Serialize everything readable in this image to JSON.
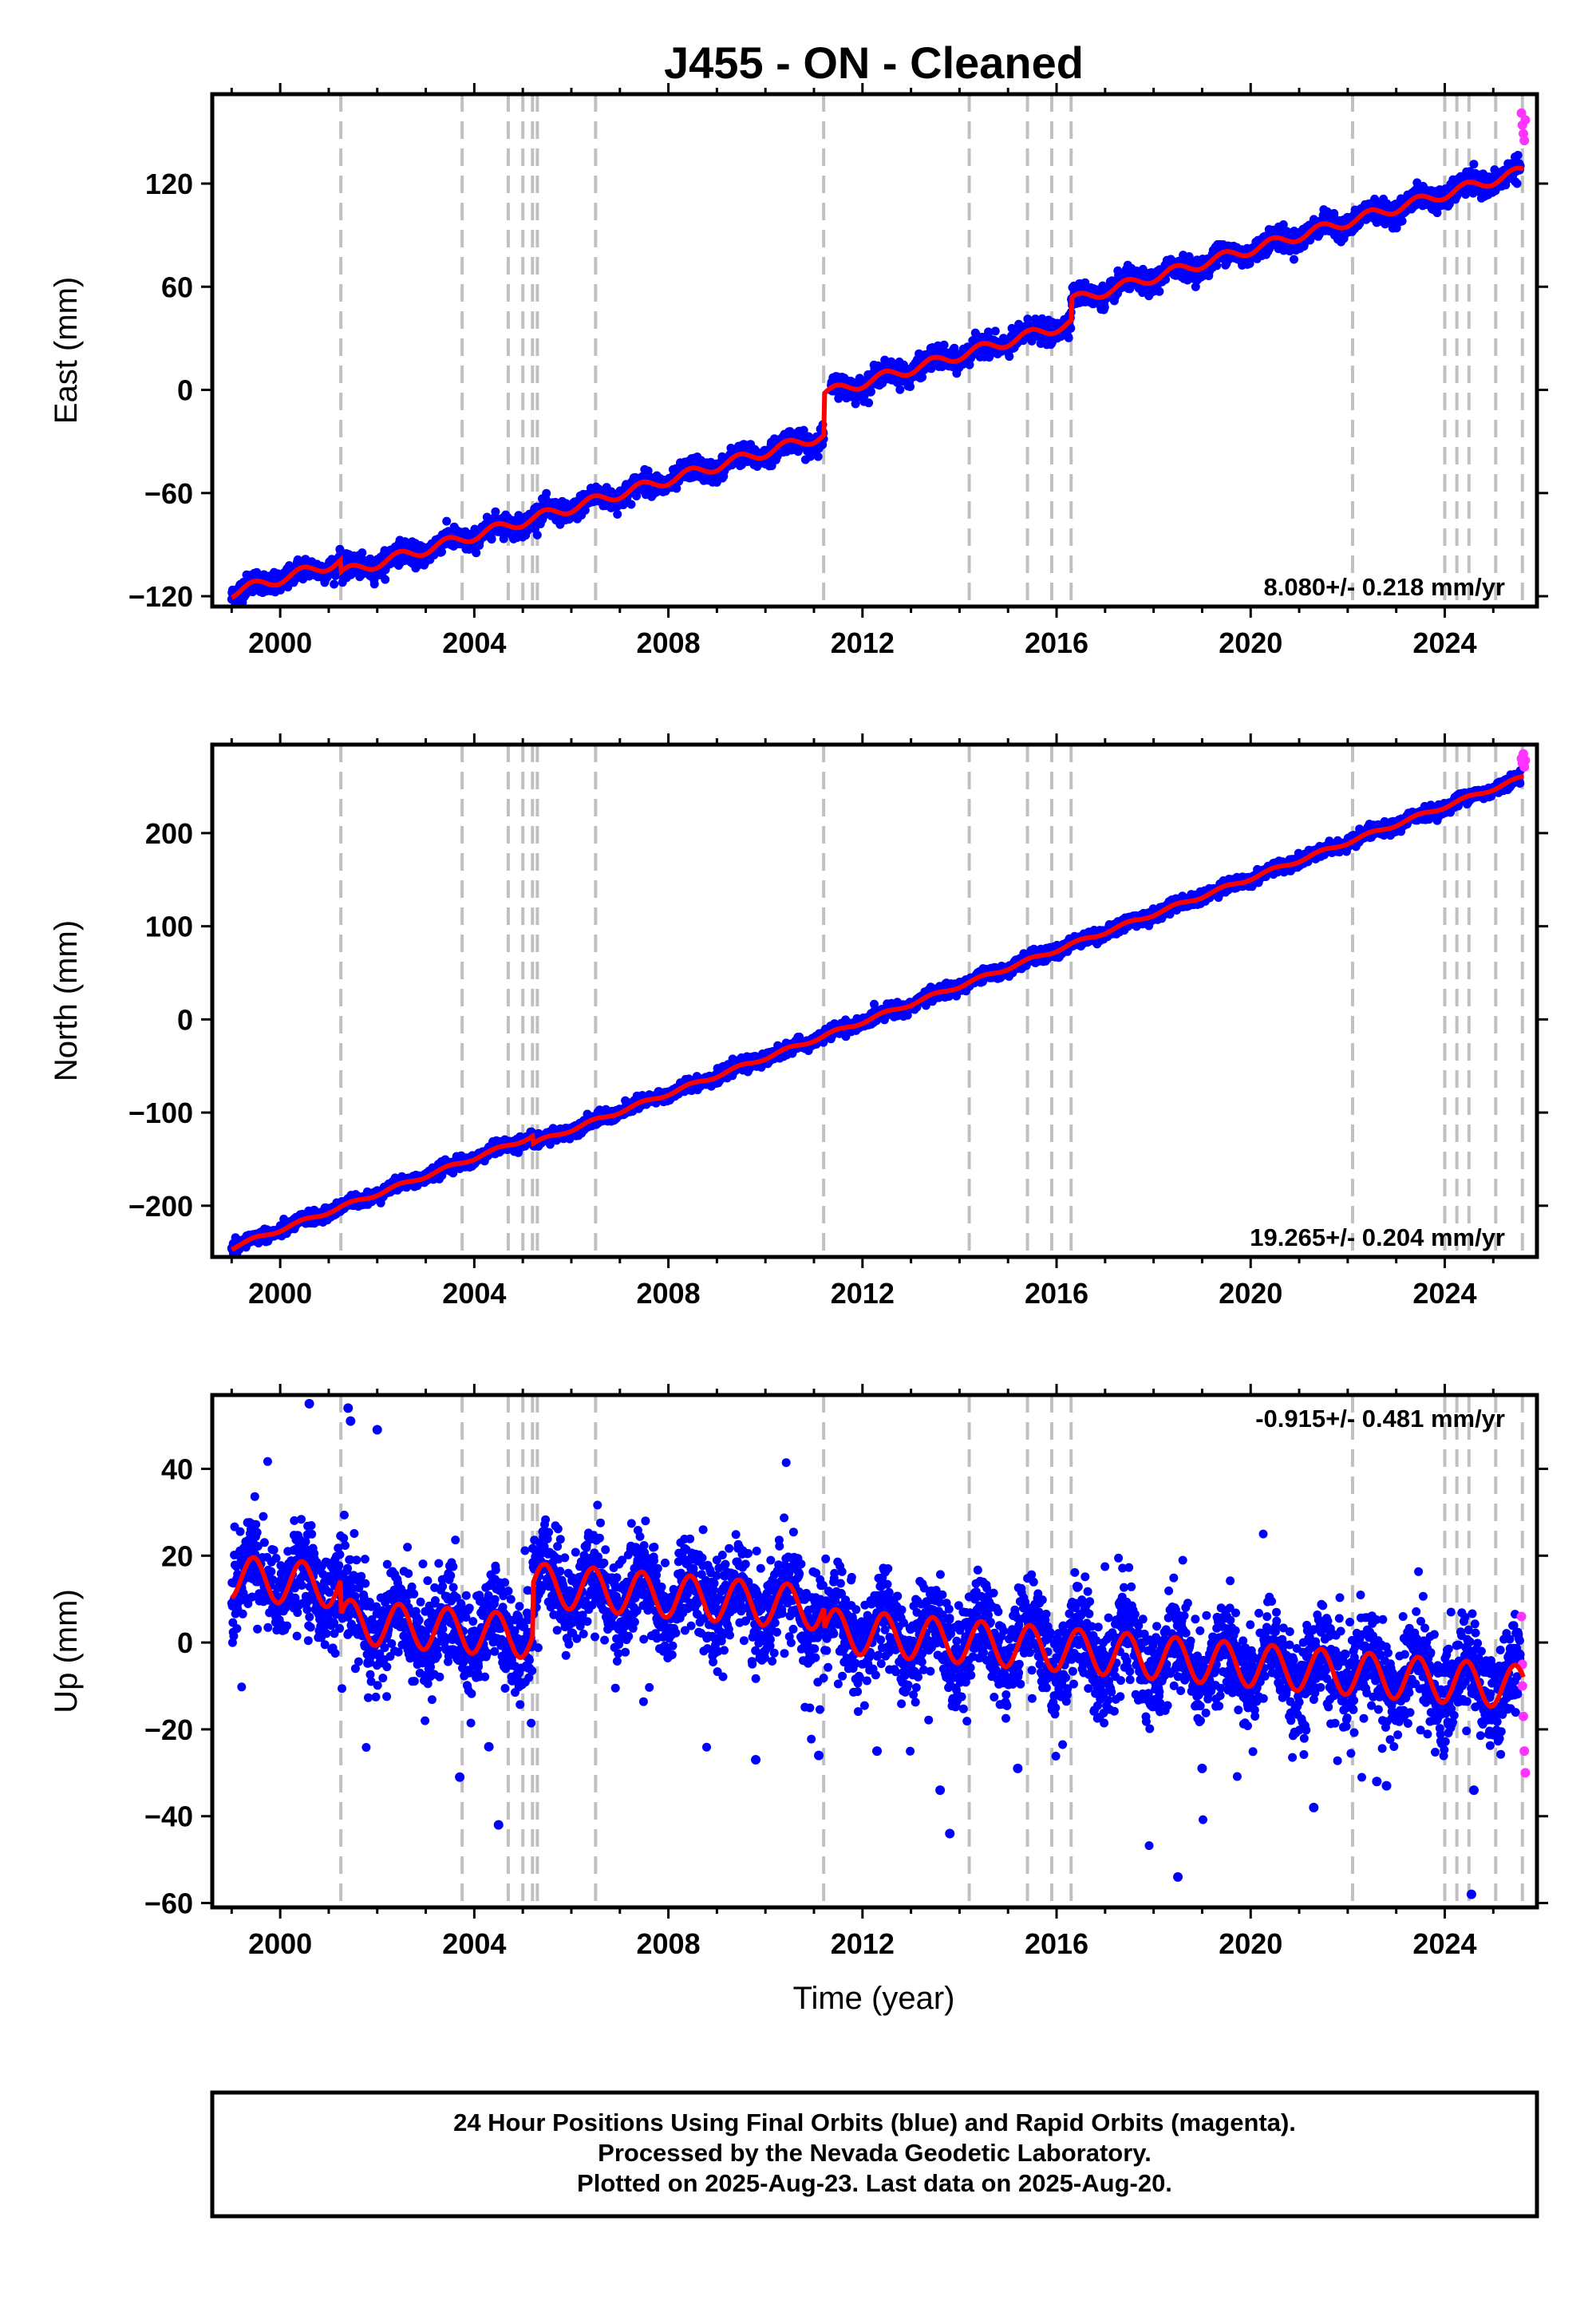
{
  "title": "J455  - ON - Cleaned",
  "x_axis_label": "Time (year)",
  "footer": {
    "line1": "24 Hour Positions Using Final Orbits (blue) and Rapid Orbits (magenta).",
    "line2": "Processed by the Nevada Geodetic Laboratory.",
    "line3": "Plotted on 2025-Aug-23. Last data on 2025-Aug-20."
  },
  "colors": {
    "final_orbits": "#0000ff",
    "rapid_orbits": "#ff33ff",
    "model": "#ff0000",
    "event_lines": "#c0c0c0"
  },
  "chart_data": [
    {
      "type": "scatter",
      "component": "East",
      "ylabel": "East (mm)",
      "xlim": [
        1998.6,
        2025.9
      ],
      "ylim": [
        -126,
        172
      ],
      "yticks": [
        -120,
        -60,
        0,
        60,
        120
      ],
      "xticks": [
        2000,
        2004,
        2008,
        2012,
        2016,
        2020,
        2024
      ],
      "rate_label": "8.080+/- 0.218 mm/yr",
      "rate_position": "bottom-right",
      "grid": false,
      "event_lines": [
        2001.25,
        2003.75,
        2004.7,
        2005.0,
        2005.2,
        2005.3,
        2006.5,
        2011.2,
        2014.2,
        2015.4,
        2015.9,
        2016.3,
        2022.1,
        2024.0,
        2024.25,
        2024.5,
        2025.05,
        2025.6
      ],
      "model": {
        "rate": 8.08,
        "ref_year": 1999.0,
        "ref_value": -118,
        "offsets": [
          {
            "year": 2001.25,
            "value": -7
          },
          {
            "year": 2011.2,
            "value": 24
          },
          {
            "year": 2016.3,
            "value": 13
          }
        ],
        "seasonal_amplitude": 3
      },
      "rapid_points": [
        [
          2025.58,
          161
        ],
        [
          2025.6,
          154
        ],
        [
          2025.62,
          149
        ],
        [
          2025.64,
          145
        ],
        [
          2025.66,
          157
        ]
      ]
    },
    {
      "type": "scatter",
      "component": "North",
      "ylabel": "North (mm)",
      "xlim": [
        1998.6,
        2025.9
      ],
      "ylim": [
        -255,
        295
      ],
      "yticks": [
        -200,
        -100,
        0,
        100,
        200
      ],
      "xticks": [
        2000,
        2004,
        2008,
        2012,
        2016,
        2020,
        2024
      ],
      "rate_label": "19.265+/- 0.204 mm/yr",
      "rate_position": "bottom-right",
      "grid": false,
      "event_lines": [
        2001.25,
        2003.75,
        2004.7,
        2005.0,
        2005.2,
        2005.3,
        2006.5,
        2011.2,
        2014.2,
        2015.4,
        2015.9,
        2016.3,
        2022.1,
        2024.0,
        2024.25,
        2024.5,
        2025.05,
        2025.6
      ],
      "model": {
        "rate": 19.265,
        "ref_year": 1999.0,
        "ref_value": -245,
        "offsets": [
          {
            "year": 2005.2,
            "value": -8
          }
        ],
        "seasonal_amplitude": 2
      },
      "rapid_points": [
        [
          2025.58,
          280
        ],
        [
          2025.6,
          275
        ],
        [
          2025.62,
          285
        ],
        [
          2025.64,
          271
        ],
        [
          2025.66,
          278
        ]
      ]
    },
    {
      "type": "scatter",
      "component": "Up",
      "ylabel": "Up (mm)",
      "xlim": [
        1998.6,
        2025.9
      ],
      "ylim": [
        -61,
        57
      ],
      "yticks": [
        -60,
        -40,
        -20,
        0,
        20,
        40
      ],
      "xticks": [
        2000,
        2004,
        2008,
        2012,
        2016,
        2020,
        2024
      ],
      "rate_label": "-0.915+/- 0.481 mm/yr",
      "rate_position": "top-right",
      "grid": false,
      "event_lines": [
        2001.25,
        2003.75,
        2004.7,
        2005.0,
        2005.2,
        2005.3,
        2006.5,
        2011.2,
        2014.2,
        2015.4,
        2015.9,
        2016.3,
        2022.1,
        2024.0,
        2024.25,
        2024.5,
        2025.05,
        2025.6
      ],
      "model": {
        "rate": -0.915,
        "ref_year": 1999.0,
        "ref_value": 15,
        "offsets": [
          {
            "year": 2001.25,
            "value": -8
          },
          {
            "year": 2005.2,
            "value": 12
          },
          {
            "year": 2011.2,
            "value": -5
          }
        ],
        "seasonal_amplitude": 5
      },
      "outliers": [
        [
          2000.6,
          55
        ],
        [
          2001.4,
          54
        ],
        [
          2001.45,
          51
        ],
        [
          2002.0,
          49
        ],
        [
          2003.7,
          -31
        ],
        [
          2004.5,
          -42
        ],
        [
          2004.3,
          -24
        ],
        [
          2009.8,
          -27
        ],
        [
          2011.1,
          -26
        ],
        [
          2012.3,
          -25
        ],
        [
          2013.6,
          -34
        ],
        [
          2013.8,
          -44
        ],
        [
          2015.2,
          -29
        ],
        [
          2018.5,
          -54
        ],
        [
          2019.0,
          -29
        ],
        [
          2021.3,
          -38
        ],
        [
          2022.6,
          -32
        ],
        [
          2022.8,
          -33
        ],
        [
          2024.55,
          -58
        ],
        [
          2024.6,
          -34
        ]
      ],
      "rapid_points": [
        [
          2025.58,
          6
        ],
        [
          2025.6,
          -5
        ],
        [
          2025.62,
          -17
        ],
        [
          2025.64,
          -25
        ],
        [
          2025.66,
          -30
        ],
        [
          2025.6,
          -10
        ]
      ]
    }
  ]
}
